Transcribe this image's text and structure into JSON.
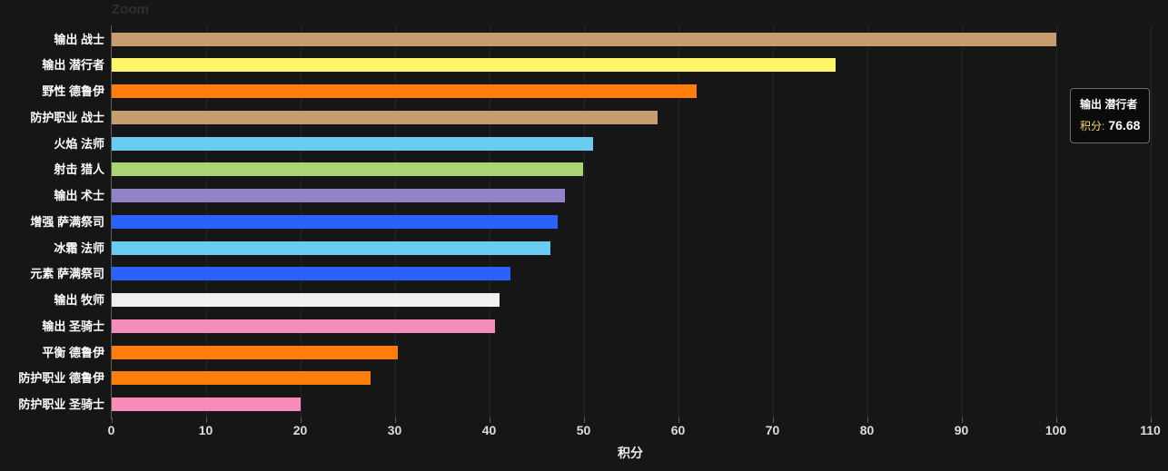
{
  "chart": {
    "zoom_label": "Zoom",
    "background": "#161616",
    "gridline_color": "#262626",
    "axis_line_color": "#5c5c5c"
  },
  "tooltip": {
    "category": "输出 潜行者",
    "value_label": "积分",
    "separator": ":",
    "value": "76.68"
  },
  "chart_data": {
    "type": "bar",
    "orientation": "horizontal",
    "title": "Zoom",
    "xlabel": "积分",
    "ylabel": "",
    "xlim": [
      0,
      110
    ],
    "x_ticks": [
      0,
      10,
      20,
      30,
      40,
      50,
      60,
      70,
      80,
      90,
      100,
      110
    ],
    "grid": true,
    "legend": false,
    "categories": [
      "输出 战士",
      "输出 潜行者",
      "野性 德鲁伊",
      "防护职业 战士",
      "火焰 法师",
      "射击 猎人",
      "输出 术士",
      "增强 萨满祭司",
      "冰霜 法师",
      "元素 萨满祭司",
      "输出 牧师",
      "输出 圣骑士",
      "平衡 德鲁伊",
      "防护职业 德鲁伊",
      "防护职业 圣骑士"
    ],
    "values": [
      100.0,
      76.68,
      61.9,
      57.8,
      51.0,
      49.9,
      48.0,
      47.2,
      46.4,
      42.2,
      41.1,
      40.6,
      30.3,
      27.4,
      20.0
    ],
    "colors": [
      "#C79C6E",
      "#FFF569",
      "#FF7D0A",
      "#C79C6E",
      "#69CCF0",
      "#ABD473",
      "#9482C9",
      "#2962FF",
      "#69CCF0",
      "#2962FF",
      "#F0F0F0",
      "#F58CBA",
      "#FF7D0A",
      "#FF7D0A",
      "#F58CBA"
    ]
  }
}
